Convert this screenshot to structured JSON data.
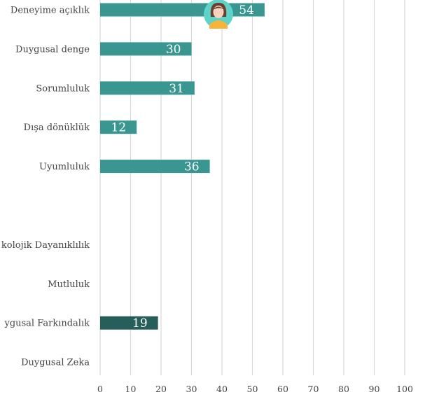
{
  "chart_data": {
    "type": "bar",
    "orientation": "horizontal",
    "categories": [
      "Deneyime açıklık",
      "Duygusal denge",
      "Sorumluluk",
      "Dışa dönüklük",
      "Uyumluluk",
      "",
      "kolojik Dayanıklılık",
      "Mutluluk",
      "ygusal Farkındalık",
      "Duygusal Zeka"
    ],
    "values": [
      54,
      30,
      31,
      12,
      36,
      null,
      null,
      null,
      19,
      null
    ],
    "value_labels": [
      "54",
      "30",
      "31",
      "12",
      "36",
      "",
      "",
      "",
      "19",
      ""
    ],
    "bar_colors": [
      "#3a9691",
      "#3a9691",
      "#3a9691",
      "#3a9691",
      "#3a9691",
      "",
      "",
      "",
      "#255e5a",
      ""
    ],
    "xlim": [
      0,
      100
    ],
    "xticks": [
      "0",
      "10",
      "20",
      "30",
      "40",
      "50",
      "60",
      "70",
      "80",
      "90",
      "100"
    ],
    "grid": true,
    "marker": {
      "icon": "person-avatar-icon",
      "at_value": 40,
      "category_index": 0,
      "circle_color": "#5fd3c8",
      "shirt_color": "#f6b43c"
    }
  }
}
